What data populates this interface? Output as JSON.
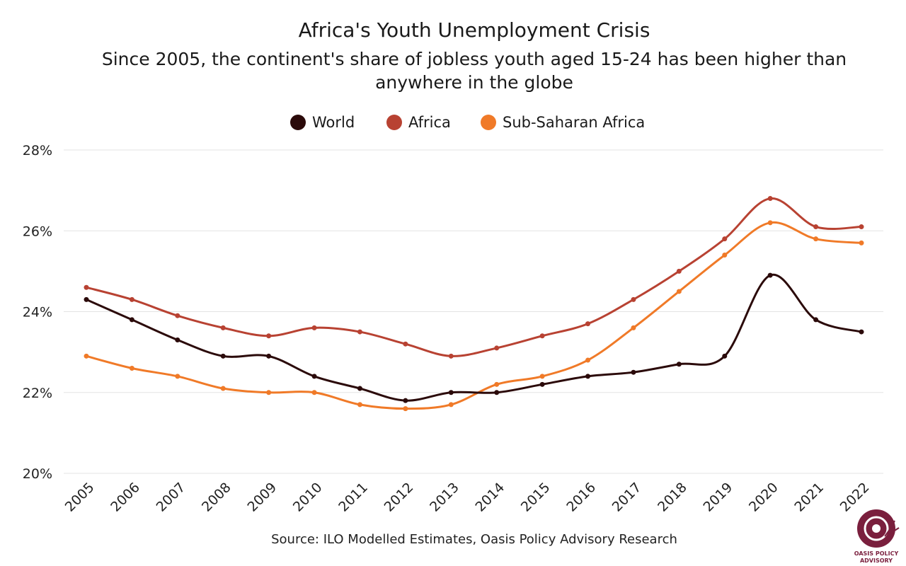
{
  "chart_data": {
    "type": "line",
    "title": "Africa's Youth Unemployment Crisis",
    "subtitle_lines": [
      "Since 2005, the continent's share of jobless youth aged 15-24 has been higher than",
      "anywhere in the globe"
    ],
    "xlabel": "",
    "ylabel": "",
    "categories": [
      "2005",
      "2006",
      "2007",
      "2008",
      "2009",
      "2010",
      "2011",
      "2012",
      "2013",
      "2014",
      "2015",
      "2016",
      "2017",
      "2018",
      "2019",
      "2020",
      "2021",
      "2022"
    ],
    "ylim": [
      20,
      28
    ],
    "yticks": [
      20,
      22,
      24,
      26,
      28
    ],
    "ytick_labels": [
      "20%",
      "22%",
      "24%",
      "26%",
      "28%"
    ],
    "legend_position": "top-center",
    "grid": true,
    "series": [
      {
        "name": "World",
        "color": "#2b0a0a",
        "values": [
          24.3,
          23.8,
          23.3,
          22.9,
          22.9,
          22.4,
          22.1,
          21.8,
          22.0,
          22.0,
          22.2,
          22.4,
          22.5,
          22.7,
          22.9,
          24.9,
          23.8,
          23.5
        ]
      },
      {
        "name": "Africa",
        "color": "#b84232",
        "values": [
          24.6,
          24.3,
          23.9,
          23.6,
          23.4,
          23.6,
          23.5,
          23.2,
          22.9,
          23.1,
          23.4,
          23.7,
          24.3,
          25.0,
          25.8,
          26.8,
          26.1,
          26.1
        ]
      },
      {
        "name": "Sub-Saharan Africa",
        "color": "#f07a28",
        "values": [
          22.9,
          22.6,
          22.4,
          22.1,
          22.0,
          22.0,
          21.7,
          21.6,
          21.7,
          22.2,
          22.4,
          22.8,
          23.6,
          24.5,
          25.4,
          26.2,
          25.8,
          25.7
        ]
      }
    ],
    "source": "Source: ILO Modelled Estimates, Oasis Policy Advisory Research"
  },
  "logo": {
    "line1": "OASIS POLICY",
    "line2": "ADVISORY",
    "color": "#7a1f3d"
  }
}
